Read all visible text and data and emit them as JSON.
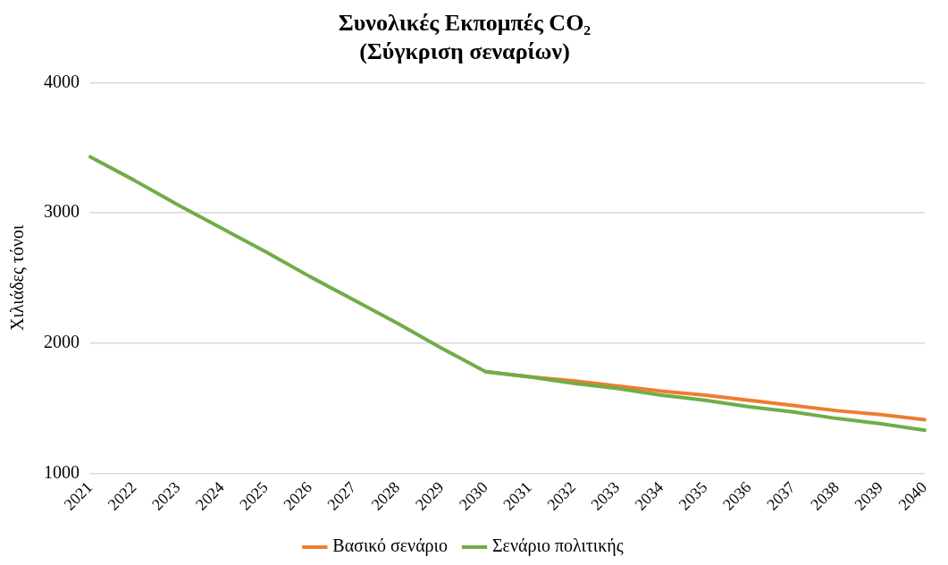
{
  "chart_data": {
    "type": "line",
    "title": "Συνολικές Εκπομπές CO₂",
    "subtitle": "(Σύγκριση σεναρίων)",
    "ylabel": "Χιλιάδες τόνοι",
    "categories": [
      "2021",
      "2022",
      "2023",
      "2024",
      "2025",
      "2026",
      "2027",
      "2028",
      "2029",
      "2030",
      "2031",
      "2032",
      "2033",
      "2034",
      "2035",
      "2036",
      "2037",
      "2038",
      "2039",
      "2040"
    ],
    "series": [
      {
        "name": "Βασικό σενάριο",
        "color": "#ed7d31",
        "values": [
          null,
          null,
          null,
          null,
          null,
          null,
          null,
          null,
          null,
          1780,
          1740,
          1710,
          1670,
          1630,
          1600,
          1560,
          1520,
          1480,
          1450,
          1410
        ]
      },
      {
        "name": "Σενάριο πολιτικής",
        "color": "#70ad47",
        "values": [
          3430,
          3250,
          3060,
          2880,
          2700,
          2510,
          2330,
          2150,
          1960,
          1780,
          1740,
          1690,
          1650,
          1600,
          1560,
          1510,
          1470,
          1420,
          1380,
          1330
        ]
      }
    ],
    "ylim": [
      1000,
      4000
    ],
    "yticks": [
      1000,
      2000,
      3000,
      4000
    ],
    "grid": "y",
    "legend": "bottom",
    "marker": "none",
    "line_style": "solid"
  }
}
